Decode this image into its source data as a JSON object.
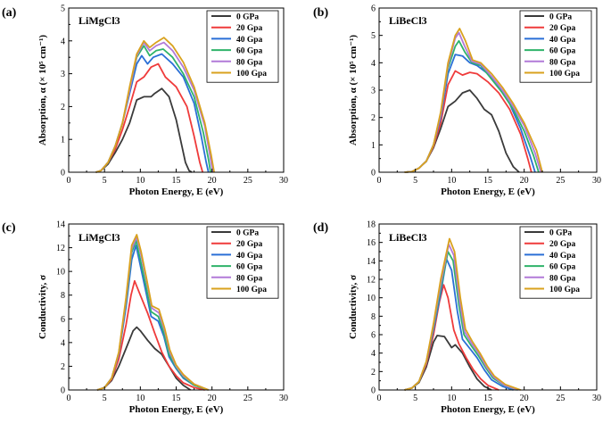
{
  "chart_data": [
    {
      "type": "line",
      "panel_label": "(a)",
      "title": "LiMgCl3",
      "xlabel": "Photon Energy, E (eV)",
      "ylabel": "Absorption, α (× 10⁵ cm⁻¹)",
      "xlim": [
        0,
        30
      ],
      "ylim": [
        0,
        5
      ],
      "xticks": [
        0,
        5,
        10,
        15,
        20,
        25,
        30
      ],
      "yticks": [
        0,
        1,
        2,
        3,
        4,
        5
      ],
      "legend_position": "top-right",
      "series": [
        {
          "name": "0 GPa",
          "color": "#3a3a3a",
          "x": [
            3.8,
            4.5,
            5.5,
            6.5,
            7.5,
            8.5,
            9.5,
            10.5,
            11.5,
            12,
            13,
            14,
            15,
            15.8,
            16.3,
            16.8,
            17.2
          ],
          "y": [
            0,
            0.05,
            0.25,
            0.6,
            1.0,
            1.5,
            2.2,
            2.3,
            2.3,
            2.4,
            2.55,
            2.3,
            1.6,
            0.8,
            0.3,
            0.05,
            0
          ]
        },
        {
          "name": "20 Gpa",
          "color": "#ef3b3b",
          "x": [
            3.8,
            4.5,
            5.5,
            6.5,
            7.5,
            8.5,
            9.5,
            10.5,
            11.5,
            12.5,
            13.5,
            15,
            16.5,
            17.5,
            18.3,
            18.7
          ],
          "y": [
            0,
            0.05,
            0.3,
            0.7,
            1.3,
            2.0,
            2.75,
            2.9,
            3.2,
            3.3,
            2.9,
            2.6,
            2.0,
            1.1,
            0.3,
            0
          ]
        },
        {
          "name": "40 Gpa",
          "color": "#2a6fd6",
          "x": [
            3.8,
            4.5,
            5.5,
            6.5,
            7.5,
            8.5,
            9.5,
            10.2,
            11,
            11.8,
            13,
            14.5,
            16,
            17.5,
            18.5,
            19.2,
            19.5
          ],
          "y": [
            0,
            0.05,
            0.3,
            0.8,
            1.5,
            2.4,
            3.3,
            3.55,
            3.3,
            3.5,
            3.6,
            3.3,
            2.9,
            2.1,
            1.1,
            0.3,
            0
          ]
        },
        {
          "name": "60 Gpa",
          "color": "#2fb36a",
          "x": [
            3.8,
            4.5,
            5.5,
            6.5,
            7.5,
            8.5,
            9.5,
            10.5,
            11.3,
            12.2,
            13.2,
            14.5,
            16,
            17.5,
            18.8,
            19.5,
            19.8
          ],
          "y": [
            0,
            0.05,
            0.3,
            0.8,
            1.5,
            2.5,
            3.5,
            3.85,
            3.55,
            3.7,
            3.75,
            3.5,
            3.0,
            2.3,
            1.2,
            0.4,
            0
          ]
        },
        {
          "name": "80 Gpa",
          "color": "#b27ad8",
          "x": [
            3.8,
            4.5,
            5.5,
            6.5,
            7.5,
            8.5,
            9.5,
            10.5,
            11.3,
            12.2,
            13.3,
            14.5,
            16,
            17.5,
            19,
            19.8,
            20.1
          ],
          "y": [
            0,
            0.05,
            0.3,
            0.8,
            1.5,
            2.5,
            3.55,
            3.95,
            3.7,
            3.85,
            3.95,
            3.7,
            3.2,
            2.5,
            1.4,
            0.4,
            0
          ]
        },
        {
          "name": "100 Gpa",
          "color": "#d9a21e",
          "x": [
            3.8,
            4.5,
            5.5,
            6.5,
            7.5,
            8.5,
            9.5,
            10.5,
            11.3,
            12.2,
            13.3,
            14.5,
            16,
            17.5,
            19,
            19.9,
            20.3
          ],
          "y": [
            0,
            0.05,
            0.3,
            0.8,
            1.5,
            2.6,
            3.6,
            4.0,
            3.8,
            3.95,
            4.1,
            3.85,
            3.35,
            2.6,
            1.5,
            0.5,
            0
          ]
        }
      ]
    },
    {
      "type": "line",
      "panel_label": "(b)",
      "title": "LiBeCl3",
      "xlabel": "Photon Energy, E (eV)",
      "ylabel": "Absorption, α (× 10⁵ cm⁻¹)",
      "xlim": [
        0,
        30
      ],
      "ylim": [
        0,
        6
      ],
      "xticks": [
        0,
        5,
        10,
        15,
        20,
        25,
        30
      ],
      "yticks": [
        0,
        1,
        2,
        3,
        4,
        5,
        6
      ],
      "legend_position": "top-right",
      "series": [
        {
          "name": "0 GPa",
          "color": "#3a3a3a",
          "x": [
            3.5,
            4.5,
            5.5,
            6.5,
            7.5,
            8.5,
            9.5,
            10.5,
            11.5,
            12.5,
            13.5,
            14.5,
            15.5,
            16.5,
            17.5,
            18.5,
            19.3
          ],
          "y": [
            0,
            0.02,
            0.15,
            0.4,
            0.9,
            1.6,
            2.4,
            2.6,
            2.9,
            3.0,
            2.7,
            2.3,
            2.1,
            1.5,
            0.7,
            0.2,
            0
          ]
        },
        {
          "name": "20 Gpa",
          "color": "#ef3b3b",
          "x": [
            3.5,
            4.5,
            5.5,
            6.5,
            7.5,
            8.5,
            9.5,
            10.5,
            11.5,
            12.5,
            13.5,
            15,
            16.5,
            18,
            19.5,
            20.5,
            21
          ],
          "y": [
            0,
            0.02,
            0.15,
            0.4,
            0.95,
            1.8,
            3.2,
            3.7,
            3.55,
            3.65,
            3.6,
            3.3,
            2.9,
            2.3,
            1.4,
            0.5,
            0
          ]
        },
        {
          "name": "40 Gpa",
          "color": "#2a6fd6",
          "x": [
            3.5,
            4.5,
            5.5,
            6.5,
            7.5,
            8.5,
            9.5,
            10.5,
            11.5,
            12.5,
            13.5,
            15,
            16.5,
            18,
            19.5,
            20.8,
            21.5
          ],
          "y": [
            0,
            0.02,
            0.15,
            0.4,
            1.0,
            2.0,
            3.6,
            4.3,
            4.25,
            4.0,
            3.9,
            3.6,
            3.1,
            2.5,
            1.6,
            0.6,
            0
          ]
        },
        {
          "name": "60 Gpa",
          "color": "#2fb36a",
          "x": [
            3.5,
            4.5,
            5.5,
            6.5,
            7.5,
            8.5,
            9.5,
            10.5,
            11,
            11.8,
            12.8,
            14,
            15.5,
            17,
            18.5,
            20,
            21.3,
            22
          ],
          "y": [
            0,
            0.02,
            0.15,
            0.4,
            1.0,
            2.1,
            3.8,
            4.6,
            4.8,
            4.4,
            4.0,
            3.9,
            3.4,
            2.9,
            2.3,
            1.5,
            0.6,
            0
          ]
        },
        {
          "name": "80 Gpa",
          "color": "#b27ad8",
          "x": [
            3.5,
            4.5,
            5.5,
            6.5,
            7.5,
            8.5,
            9.5,
            10.5,
            11,
            11.8,
            12.8,
            14,
            15.5,
            17,
            18.5,
            20,
            21.5,
            22.3
          ],
          "y": [
            0,
            0.02,
            0.15,
            0.4,
            1.0,
            2.1,
            3.9,
            4.9,
            5.1,
            4.6,
            4.05,
            3.95,
            3.5,
            3.0,
            2.4,
            1.7,
            0.7,
            0
          ]
        },
        {
          "name": "100 Gpa",
          "color": "#d9a21e",
          "x": [
            3.5,
            4.5,
            5.5,
            6.5,
            7.5,
            8.5,
            9.5,
            10.5,
            11.1,
            11.9,
            12.9,
            14,
            15.5,
            17,
            18.5,
            20,
            21.7,
            22.5
          ],
          "y": [
            0,
            0.02,
            0.15,
            0.4,
            1.0,
            2.2,
            4.0,
            5.0,
            5.25,
            4.8,
            4.1,
            4.0,
            3.6,
            3.1,
            2.5,
            1.8,
            0.8,
            0
          ]
        }
      ]
    },
    {
      "type": "line",
      "panel_label": "(c)",
      "title": "LiMgCl3",
      "xlabel": "Photon Energy, E (eV)",
      "ylabel": "Conductivity, σ",
      "xlim": [
        0,
        30
      ],
      "ylim": [
        0,
        14
      ],
      "xticks": [
        0,
        5,
        10,
        15,
        20,
        25,
        30
      ],
      "yticks": [
        0,
        2,
        4,
        6,
        8,
        10,
        12,
        14
      ],
      "legend_position": "top-right",
      "series": [
        {
          "name": "0 GPa",
          "color": "#3a3a3a",
          "x": [
            4,
            5,
            6,
            7,
            8,
            9,
            9.5,
            10,
            11,
            12,
            13,
            14,
            15,
            16,
            17
          ],
          "y": [
            0,
            0.2,
            0.8,
            2.0,
            3.5,
            5.0,
            5.3,
            5.0,
            4.2,
            3.5,
            3.0,
            2.0,
            1.0,
            0.4,
            0
          ]
        },
        {
          "name": "20 Gpa",
          "color": "#ef3b3b",
          "x": [
            4,
            5,
            6,
            7,
            8,
            8.7,
            9.2,
            10,
            11,
            12,
            13,
            14,
            15,
            16,
            17.5,
            19
          ],
          "y": [
            0,
            0.2,
            0.9,
            2.6,
            5.5,
            8.0,
            9.2,
            8.0,
            6.5,
            4.8,
            3.2,
            2.0,
            1.2,
            0.6,
            0.2,
            0
          ]
        },
        {
          "name": "40 Gpa",
          "color": "#2a6fd6",
          "x": [
            4,
            5,
            6,
            7,
            8,
            8.8,
            9.4,
            10,
            10.7,
            11.5,
            12.5,
            13.3,
            14,
            15,
            16,
            17.5,
            19.5
          ],
          "y": [
            0,
            0.2,
            1.0,
            3.0,
            7.0,
            11.0,
            12.2,
            10.5,
            8.5,
            6.2,
            5.8,
            4.5,
            2.8,
            1.8,
            1.0,
            0.4,
            0
          ]
        },
        {
          "name": "60 Gpa",
          "color": "#2fb36a",
          "x": [
            4,
            5,
            6,
            7,
            8,
            8.8,
            9.4,
            10,
            10.7,
            11.5,
            12.5,
            13.3,
            14,
            15,
            16,
            17.5,
            19.5
          ],
          "y": [
            0,
            0.2,
            1.0,
            3.1,
            7.4,
            11.6,
            12.6,
            11.0,
            9.0,
            6.6,
            6.2,
            4.8,
            3.0,
            1.9,
            1.1,
            0.4,
            0
          ]
        },
        {
          "name": "80 Gpa",
          "color": "#b27ad8",
          "x": [
            4,
            5,
            6,
            7,
            8,
            8.8,
            9.5,
            10.1,
            10.8,
            11.6,
            12.6,
            13.4,
            14.1,
            15,
            16,
            17.5,
            19.5
          ],
          "y": [
            0,
            0.2,
            1.0,
            3.1,
            7.6,
            11.9,
            12.9,
            11.4,
            9.4,
            6.9,
            6.5,
            5.0,
            3.2,
            2.0,
            1.2,
            0.5,
            0
          ]
        },
        {
          "name": "100 Gpa",
          "color": "#d9a21e",
          "x": [
            4,
            5,
            6,
            7,
            8,
            8.8,
            9.5,
            10.1,
            10.8,
            11.6,
            12.6,
            13.4,
            14.1,
            15,
            16,
            17.5,
            19.5
          ],
          "y": [
            0,
            0.2,
            1.0,
            3.2,
            7.8,
            12.2,
            13.1,
            11.7,
            9.6,
            7.1,
            6.8,
            5.2,
            3.4,
            2.1,
            1.3,
            0.5,
            0
          ]
        }
      ]
    },
    {
      "type": "line",
      "panel_label": "(d)",
      "title": "LiBeCl3",
      "xlabel": "Photon Energy, E (eV)",
      "ylabel": "Conductivity, σ",
      "xlim": [
        0,
        30
      ],
      "ylim": [
        0,
        18
      ],
      "xticks": [
        0,
        5,
        10,
        15,
        20,
        25,
        30
      ],
      "yticks": [
        0,
        2,
        4,
        6,
        8,
        10,
        12,
        14,
        16,
        18
      ],
      "legend_position": "top-right",
      "series": [
        {
          "name": "0 GPa",
          "color": "#3a3a3a",
          "x": [
            3.5,
            4.5,
            5.5,
            6.5,
            7.5,
            8,
            9,
            10,
            10.5,
            11.5,
            12.5,
            13.5,
            14.5,
            15.5
          ],
          "y": [
            0,
            0.2,
            0.8,
            2.5,
            5.2,
            5.9,
            5.8,
            4.6,
            4.9,
            4.0,
            2.5,
            1.2,
            0.4,
            0
          ]
        },
        {
          "name": "20 Gpa",
          "color": "#ef3b3b",
          "x": [
            3.5,
            4.5,
            5.5,
            6.5,
            7.5,
            8.3,
            8.9,
            9.5,
            10.3,
            11,
            12,
            13,
            14,
            15,
            16.5
          ],
          "y": [
            0,
            0.2,
            0.9,
            2.8,
            6.0,
            9.5,
            11.4,
            10.0,
            6.5,
            5.0,
            3.5,
            2.2,
            1.2,
            0.5,
            0
          ]
        },
        {
          "name": "40 Gpa",
          "color": "#2a6fd6",
          "x": [
            3.5,
            4.5,
            5.5,
            6.5,
            7.5,
            8.5,
            9.3,
            10,
            10.8,
            11.5,
            12.5,
            13.5,
            14.5,
            15.5,
            17,
            18.5
          ],
          "y": [
            0,
            0.2,
            0.9,
            3.0,
            6.5,
            10.5,
            14.2,
            13.0,
            8.5,
            5.5,
            4.5,
            3.5,
            2.2,
            1.1,
            0.4,
            0
          ]
        },
        {
          "name": "60 Gpa",
          "color": "#2fb36a",
          "x": [
            3.5,
            4.5,
            5.5,
            6.5,
            7.5,
            8.5,
            9.5,
            10.2,
            11,
            11.7,
            12.7,
            13.7,
            14.7,
            15.7,
            17.2,
            19
          ],
          "y": [
            0,
            0.2,
            0.9,
            3.0,
            6.8,
            11.0,
            15.0,
            14.0,
            9.2,
            6.0,
            4.8,
            3.7,
            2.4,
            1.3,
            0.5,
            0
          ]
        },
        {
          "name": "80 Gpa",
          "color": "#b27ad8",
          "x": [
            3.5,
            4.5,
            5.5,
            6.5,
            7.5,
            8.5,
            9.6,
            10.3,
            11.1,
            11.8,
            12.8,
            13.8,
            14.8,
            15.8,
            17.3,
            19.2
          ],
          "y": [
            0,
            0.2,
            0.9,
            3.0,
            7.0,
            11.5,
            15.8,
            14.6,
            9.6,
            6.3,
            5.0,
            3.9,
            2.5,
            1.4,
            0.5,
            0
          ]
        },
        {
          "name": "100 Gpa",
          "color": "#d9a21e",
          "x": [
            3.5,
            4.5,
            5.5,
            6.5,
            7.5,
            8.5,
            9.7,
            10.4,
            11.2,
            11.9,
            12.9,
            13.9,
            14.9,
            15.9,
            17.4,
            19.5
          ],
          "y": [
            0,
            0.2,
            0.9,
            3.1,
            7.2,
            12.0,
            16.4,
            15.0,
            10.0,
            6.6,
            5.2,
            4.0,
            2.6,
            1.5,
            0.6,
            0
          ]
        }
      ]
    }
  ]
}
